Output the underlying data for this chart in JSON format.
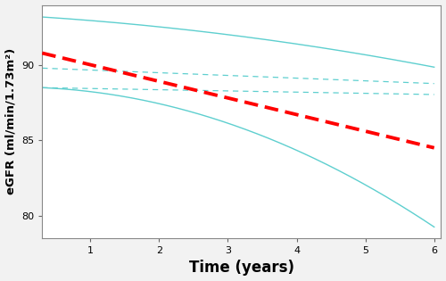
{
  "xlabel": "Time (years)",
  "ylabel": "eGFR (ml/min/1.73m²)",
  "xlim": [
    0.3,
    6.1
  ],
  "ylim": [
    78.5,
    94
  ],
  "yticks": [
    80,
    85,
    90
  ],
  "xticks": [
    1,
    2,
    3,
    4,
    5,
    6
  ],
  "red_color": "#FF0000",
  "cyan_color": "#5ECFCF",
  "background_color": "#F2F2F2",
  "plot_bg": "#FFFFFF",
  "xlabel_fontsize": 12,
  "ylabel_fontsize": 9.5,
  "tick_fontsize": 8
}
